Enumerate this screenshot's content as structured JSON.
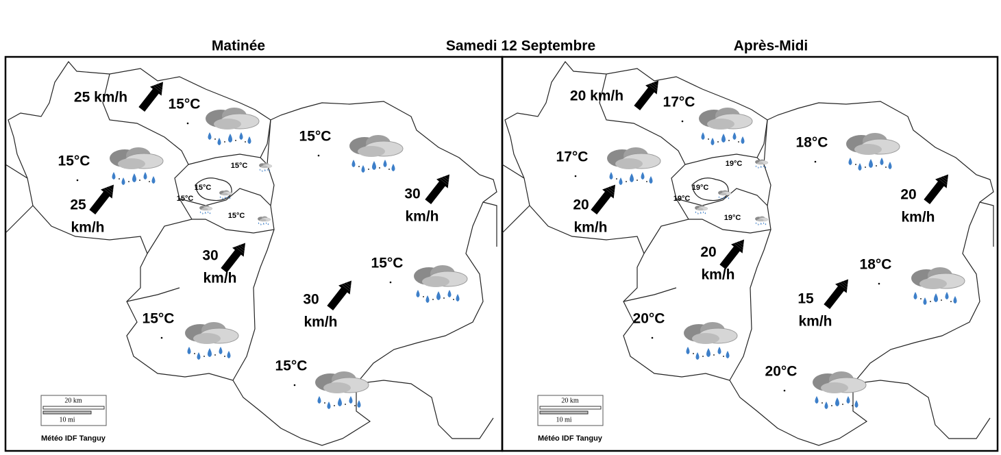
{
  "header": {
    "title": "Samedi 12 Septembre"
  },
  "panels": [
    {
      "title": "Matinée",
      "temperatures": [
        "15°C",
        "15°C",
        "15°C",
        "15°C",
        "15°C",
        "15°C"
      ],
      "districts": [
        "15°C",
        "15°C",
        "15°C",
        "15°C"
      ],
      "winds": [
        {
          "lines": [
            "25 km/h"
          ]
        },
        {
          "lines": [
            "25",
            "km/h"
          ]
        },
        {
          "lines": [
            "30",
            "km/h"
          ]
        },
        {
          "lines": [
            "30",
            "km/h"
          ]
        },
        {
          "lines": [
            "30",
            "km/h"
          ]
        }
      ],
      "scale": {
        "km": "20 km",
        "mi": "10 mi"
      },
      "credit": "Météo IDF Tanguy"
    },
    {
      "title": "Après-Midi",
      "temperatures": [
        "17°C",
        "17°C",
        "18°C",
        "18°C",
        "20°C",
        "20°C"
      ],
      "districts": [
        "19°C",
        "19°C",
        "19°C",
        "19°C"
      ],
      "winds": [
        {
          "lines": [
            "20 km/h"
          ]
        },
        {
          "lines": [
            "20",
            "km/h"
          ]
        },
        {
          "lines": [
            "20",
            "km/h"
          ]
        },
        {
          "lines": [
            "20",
            "km/h"
          ]
        },
        {
          "lines": [
            "15",
            "km/h"
          ]
        }
      ],
      "scale": {
        "km": "20 km",
        "mi": "10 mi"
      },
      "credit": "Météo IDF Tanguy"
    }
  ]
}
